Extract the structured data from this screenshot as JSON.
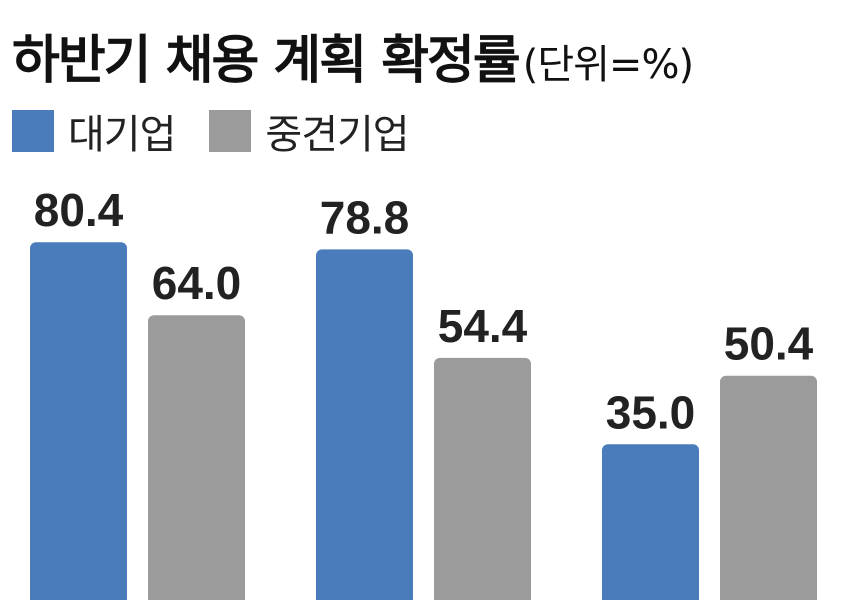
{
  "title": "하반기 채용 계획 확정률",
  "unit": "(단위=%)",
  "legend": [
    {
      "label": "대기업",
      "color": "#4a7bbb"
    },
    {
      "label": "중견기업",
      "color": "#9b9b9b"
    }
  ],
  "chart_data": {
    "type": "bar",
    "title": "하반기 채용 계획 확정률",
    "unit": "%",
    "categories": [
      "",
      "",
      ""
    ],
    "series": [
      {
        "name": "대기업",
        "color": "#4a7bbb",
        "values": [
          80.4,
          78.8,
          35.0
        ]
      },
      {
        "name": "중견기업",
        "color": "#9b9b9b",
        "values": [
          64.0,
          54.4,
          50.4
        ]
      }
    ],
    "value_labels": [
      [
        "80.4",
        "78.8",
        "35.0"
      ],
      [
        "64.0",
        "54.4",
        "50.4"
      ]
    ],
    "ylim": [
      0,
      100
    ],
    "grid": false,
    "legend_position": "top-left"
  }
}
